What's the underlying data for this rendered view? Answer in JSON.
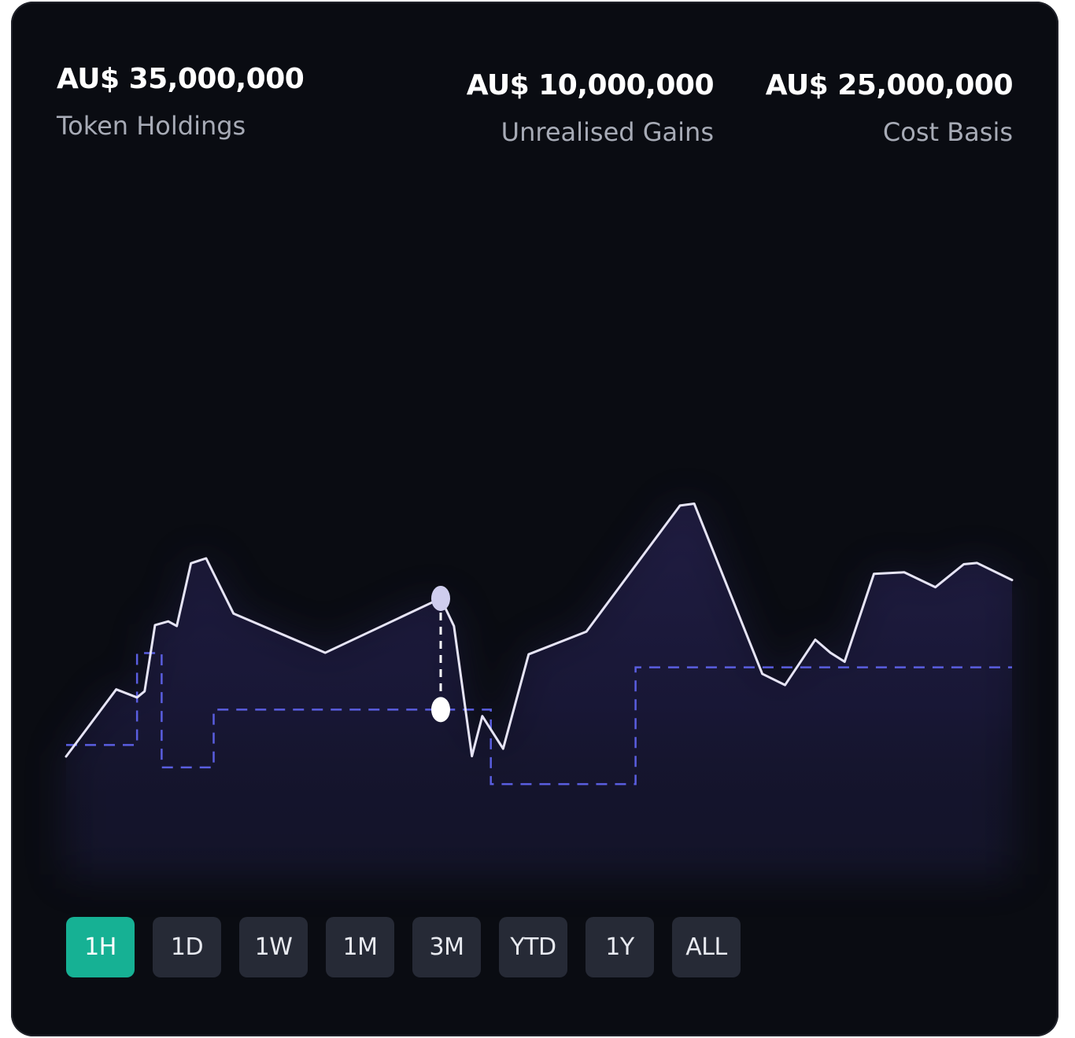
{
  "metrics": {
    "token_holdings": {
      "value": "AU$ 35,000,000",
      "label": "Token Holdings"
    },
    "unrealised_gains": {
      "value": "AU$ 10,000,000",
      "label": "Unrealised Gains"
    },
    "cost_basis": {
      "value": "AU$ 25,000,000",
      "label": "Cost Basis"
    }
  },
  "range_buttons": [
    {
      "label": "1H",
      "active": true
    },
    {
      "label": "1D",
      "active": false
    },
    {
      "label": "1W",
      "active": false
    },
    {
      "label": "1M",
      "active": false
    },
    {
      "label": "3M",
      "active": false
    },
    {
      "label": "YTD",
      "active": false
    },
    {
      "label": "1Y",
      "active": false
    },
    {
      "label": "ALL",
      "active": false
    }
  ],
  "colors": {
    "background": "#0a0c12",
    "holdings_line": "#e6e4f5",
    "cost_basis_line": "#5a5ee0",
    "active_button": "#16b194",
    "button": "#262a36",
    "marker": "#cfcdee"
  },
  "chart_data": {
    "type": "line",
    "xlim": [
      0,
      100
    ],
    "ylim": [
      0,
      100
    ],
    "grid": false,
    "legend": "none",
    "series": [
      {
        "style": "solid-area",
        "points": [
          [
            0,
            0
          ],
          [
            5.3,
            21.6
          ],
          [
            7.5,
            19
          ],
          [
            8.3,
            21
          ],
          [
            9.4,
            42.3
          ],
          [
            10.8,
            43.5
          ],
          [
            11.7,
            42
          ],
          [
            13.2,
            62.2
          ],
          [
            14.8,
            63.8
          ],
          [
            17.7,
            46
          ],
          [
            27.4,
            33.4
          ],
          [
            39.6,
            50.9
          ],
          [
            41.0,
            42
          ],
          [
            42.9,
            0.1
          ],
          [
            44.0,
            13
          ],
          [
            46.2,
            2.5
          ],
          [
            48.9,
            32.9
          ],
          [
            55.0,
            40.2
          ],
          [
            64.9,
            80.8
          ],
          [
            66.4,
            81.4
          ],
          [
            73.6,
            26.6
          ],
          [
            76.0,
            23
          ],
          [
            79.2,
            37.6
          ],
          [
            80.8,
            33.4
          ],
          [
            82.3,
            30.5
          ],
          [
            85.4,
            58.8
          ],
          [
            88.6,
            59.3
          ],
          [
            91.9,
            54.5
          ],
          [
            94.9,
            61.9
          ],
          [
            96.3,
            62.3
          ],
          [
            100,
            56.8
          ]
        ]
      },
      {
        "style": "dashed-step",
        "points": [
          [
            0,
            3.7
          ],
          [
            7.5,
            3.7
          ],
          [
            7.5,
            33.3
          ],
          [
            10.1,
            33.3
          ],
          [
            10.1,
            -3.5
          ],
          [
            15.6,
            -3.5
          ],
          [
            15.6,
            15.1
          ],
          [
            44.9,
            15.1
          ],
          [
            44.9,
            -8.9
          ],
          [
            60.2,
            -8.9
          ],
          [
            60.2,
            28.7
          ],
          [
            100,
            28.7
          ]
        ]
      }
    ],
    "marker": {
      "x": 39.6,
      "upper": 50.9,
      "lower": 15.1
    }
  }
}
